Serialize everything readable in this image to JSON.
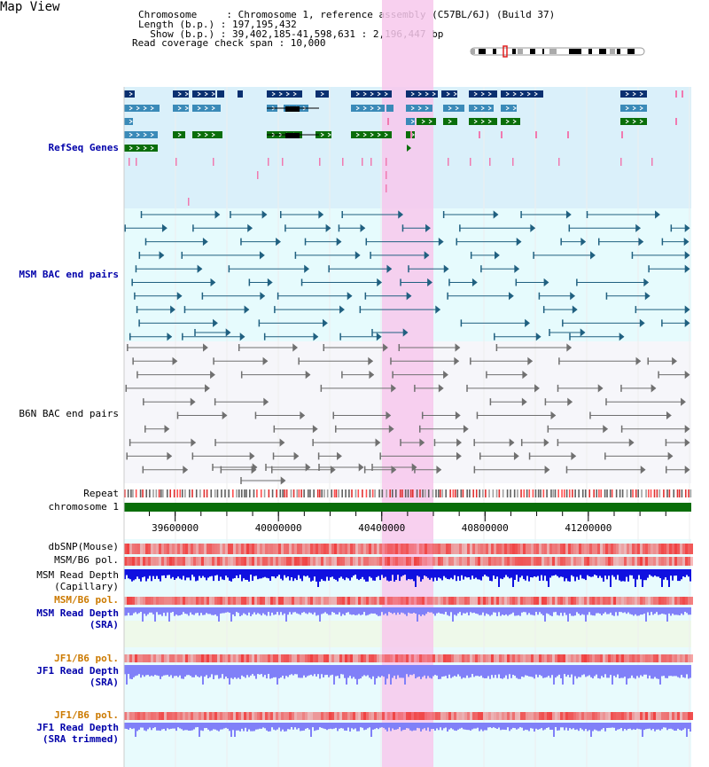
{
  "title": "Map View",
  "info": {
    "chromosome_line": "Chromosome     : Chromosome 1, reference assembly (C57BL/6J) (Build 37)",
    "length_line": "Length (b.p.) : 197,195,432",
    "show_line": "  Show (b.p.) : 39,402,185-41,598,631 : 2,196,447 bp",
    "coverage_line": "Read coverage check span : 10,000"
  },
  "tracks": {
    "refseq": {
      "label": "RefSeq Genes",
      "color": "#0000aa"
    },
    "msm_bac": {
      "label": "MSM BAC end pairs",
      "color": "#0000aa"
    },
    "b6n_bac": {
      "label": "B6N BAC end pairs",
      "color": "#000000"
    },
    "repeat": {
      "label": "Repeat",
      "color": "#000000"
    },
    "chromosome": {
      "label": "chromosome 1",
      "color": "#000000"
    },
    "dbsnp": {
      "label": "dbSNP(Mouse)",
      "color": "#000000"
    },
    "msm_b6_pol_cap": {
      "label": "MSM/B6 pol.",
      "color": "#000000"
    },
    "msm_depth_cap": {
      "label1": "MSM Read Depth",
      "label2": "(Capillary)",
      "color": "#000000"
    },
    "msm_b6_pol_sra": {
      "label": "MSM/B6 pol.",
      "color": "#cc7a00"
    },
    "msm_depth_sra": {
      "label1": "MSM Read Depth",
      "label2": "(SRA)",
      "color": "#0000aa"
    },
    "jf1_b6_pol": {
      "label": "JF1/B6 pol.",
      "color": "#cc7a00"
    },
    "jf1_depth_sra": {
      "label1": "JF1 Read Depth",
      "label2": "(SRA)",
      "color": "#0000aa"
    },
    "jf1_b6_pol_trim": {
      "label": "JF1/B6 pol.",
      "color": "#cc7a00"
    },
    "jf1_depth_trim": {
      "label1": "JF1 Read Depth",
      "label2": "(SRA trimmed)",
      "color": "#0000aa"
    }
  },
  "axis": {
    "ticks": [
      "39600000",
      "40000000",
      "40400000",
      "40800000",
      "41200000"
    ],
    "tick_values": [
      39600000,
      40000000,
      40400000,
      40800000,
      41200000
    ],
    "range": [
      39402185,
      41598631
    ]
  },
  "highlight": {
    "start": 40400000,
    "end": 40600000,
    "color": "#f7c8ec"
  },
  "colors": {
    "gene_dark": "#0a3070",
    "gene_mid": "#3a8ab8",
    "gene_green": "#0a6e0a",
    "pink_mark": "#f07ab0",
    "msm_line": "#206080",
    "b6n_line": "#707070",
    "chrom_bar": "#0a6e0a",
    "depth_blue": "#1010e0",
    "depth_light": "#8080f8",
    "pol_red": "#f04040"
  },
  "icons": {
    "ideogram": "chromosome-ideogram-icon"
  }
}
